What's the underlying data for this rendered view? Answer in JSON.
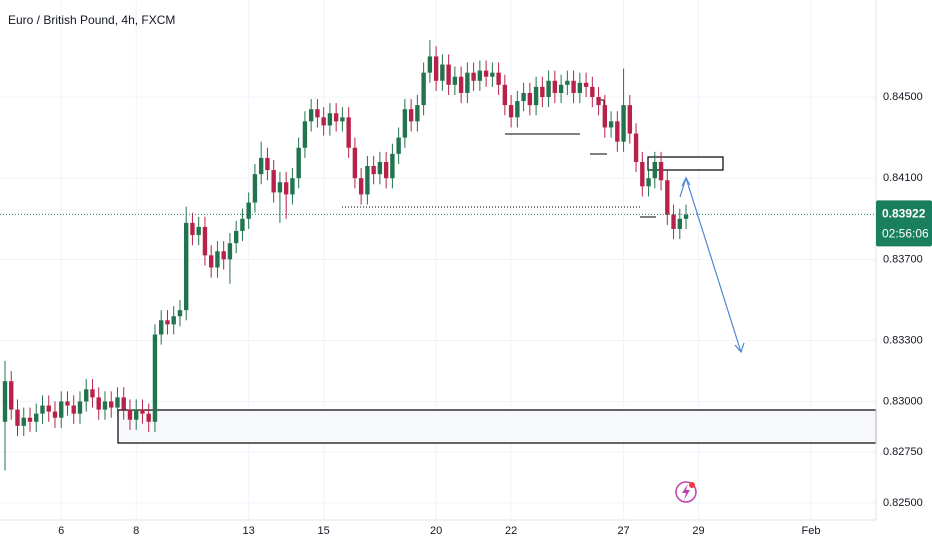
{
  "chart_data": {
    "type": "candlestick",
    "title": "Euro / British Pound, 4h, FXCM",
    "up_color": "#22744f",
    "down_color": "#b8224a",
    "open": [
      0.829,
      0.831,
      0.8296,
      0.8288,
      0.8292,
      0.829,
      0.8294,
      0.8298,
      0.8295,
      0.8292,
      0.83,
      0.8298,
      0.8294,
      0.83,
      0.8306,
      0.8302,
      0.8296,
      0.83,
      0.8297,
      0.8302,
      0.8296,
      0.8291,
      0.8296,
      0.8294,
      0.829,
      0.8333,
      0.834,
      0.8338,
      0.8342,
      0.8345,
      0.8388,
      0.8382,
      0.8386,
      0.8372,
      0.8366,
      0.8374,
      0.837,
      0.8378,
      0.8384,
      0.839,
      0.8398,
      0.8412,
      0.842,
      0.8414,
      0.8403,
      0.8408,
      0.8402,
      0.841,
      0.8425,
      0.8438,
      0.8444,
      0.844,
      0.8436,
      0.8442,
      0.8438,
      0.844,
      0.8425,
      0.841,
      0.8402,
      0.8416,
      0.8412,
      0.8418,
      0.841,
      0.8422,
      0.843,
      0.8444,
      0.8438,
      0.8446,
      0.8462,
      0.847,
      0.8458,
      0.8466,
      0.8456,
      0.846,
      0.8452,
      0.8462,
      0.8458,
      0.8463,
      0.846,
      0.8462,
      0.8456,
      0.8446,
      0.844,
      0.8448,
      0.8452,
      0.8446,
      0.8455,
      0.845,
      0.8458,
      0.8452,
      0.8456,
      0.8458,
      0.8452,
      0.8457,
      0.8455,
      0.845,
      0.8446,
      0.8435,
      0.8438,
      0.8428,
      0.8446,
      0.8432,
      0.8418,
      0.8406,
      0.841,
      0.8418,
      0.8409,
      0.8392,
      0.8385,
      0.839
    ],
    "high": [
      0.832,
      0.8315,
      0.8301,
      0.8297,
      0.8297,
      0.8299,
      0.8303,
      0.8303,
      0.83,
      0.8305,
      0.8305,
      0.8303,
      0.8305,
      0.8311,
      0.8311,
      0.8307,
      0.8305,
      0.8305,
      0.8307,
      0.8307,
      0.8301,
      0.8301,
      0.8301,
      0.8299,
      0.8338,
      0.8345,
      0.8345,
      0.8347,
      0.835,
      0.8396,
      0.8393,
      0.8391,
      0.8391,
      0.8377,
      0.8379,
      0.8379,
      0.8383,
      0.8389,
      0.8395,
      0.8403,
      0.8417,
      0.8428,
      0.8425,
      0.8419,
      0.8413,
      0.8413,
      0.8415,
      0.843,
      0.8443,
      0.8449,
      0.8449,
      0.8445,
      0.8447,
      0.8447,
      0.8445,
      0.8445,
      0.843,
      0.8415,
      0.8421,
      0.8421,
      0.8423,
      0.8423,
      0.8427,
      0.8435,
      0.8449,
      0.8449,
      0.8451,
      0.8467,
      0.8478,
      0.8475,
      0.8471,
      0.8471,
      0.8465,
      0.8465,
      0.8467,
      0.8467,
      0.8468,
      0.8468,
      0.8467,
      0.8467,
      0.8461,
      0.8451,
      0.8453,
      0.8457,
      0.8457,
      0.846,
      0.846,
      0.8463,
      0.8463,
      0.8461,
      0.8463,
      0.8463,
      0.8462,
      0.8462,
      0.846,
      0.8455,
      0.8451,
      0.8443,
      0.8443,
      0.8464,
      0.8451,
      0.8437,
      0.8423,
      0.8415,
      0.8423,
      0.8423,
      0.8414,
      0.8397,
      0.8395,
      0.8397
    ],
    "low": [
      0.8266,
      0.8291,
      0.8283,
      0.8283,
      0.8285,
      0.8285,
      0.8289,
      0.829,
      0.8287,
      0.8287,
      0.8293,
      0.8289,
      0.8289,
      0.8295,
      0.8297,
      0.8291,
      0.8291,
      0.8292,
      0.8292,
      0.8291,
      0.8286,
      0.8286,
      0.8289,
      0.8285,
      0.8285,
      0.8328,
      0.8333,
      0.8333,
      0.8337,
      0.834,
      0.8377,
      0.8377,
      0.8367,
      0.8361,
      0.8361,
      0.8365,
      0.8358,
      0.8373,
      0.8379,
      0.8385,
      0.8393,
      0.8407,
      0.8409,
      0.8398,
      0.8388,
      0.839,
      0.8397,
      0.8405,
      0.842,
      0.8433,
      0.8435,
      0.8431,
      0.8431,
      0.8433,
      0.8433,
      0.842,
      0.8405,
      0.8397,
      0.8397,
      0.8407,
      0.8407,
      0.8405,
      0.8405,
      0.8417,
      0.8425,
      0.8433,
      0.8433,
      0.8441,
      0.8457,
      0.8453,
      0.8453,
      0.8451,
      0.8451,
      0.8447,
      0.8447,
      0.8453,
      0.8453,
      0.8455,
      0.8455,
      0.8451,
      0.8441,
      0.8435,
      0.8435,
      0.8443,
      0.8441,
      0.8441,
      0.8445,
      0.8445,
      0.8447,
      0.8447,
      0.8451,
      0.8447,
      0.8447,
      0.845,
      0.8445,
      0.8441,
      0.843,
      0.843,
      0.8423,
      0.8423,
      0.8427,
      0.8413,
      0.8401,
      0.8401,
      0.8405,
      0.8404,
      0.8387,
      0.838,
      0.838,
      0.8385
    ],
    "close": [
      0.831,
      0.8296,
      0.8288,
      0.8292,
      0.829,
      0.8294,
      0.8298,
      0.8295,
      0.8292,
      0.83,
      0.8298,
      0.8294,
      0.83,
      0.8306,
      0.8302,
      0.8296,
      0.83,
      0.8297,
      0.8302,
      0.8296,
      0.8291,
      0.8296,
      0.8294,
      0.829,
      0.8333,
      0.834,
      0.8338,
      0.8342,
      0.8345,
      0.8388,
      0.8382,
      0.8386,
      0.8372,
      0.8366,
      0.8374,
      0.837,
      0.8378,
      0.8384,
      0.839,
      0.8398,
      0.8412,
      0.842,
      0.8414,
      0.8403,
      0.8408,
      0.8402,
      0.841,
      0.8425,
      0.8438,
      0.8444,
      0.844,
      0.8436,
      0.8442,
      0.8438,
      0.844,
      0.8425,
      0.841,
      0.8402,
      0.8416,
      0.8412,
      0.8418,
      0.841,
      0.8422,
      0.843,
      0.8444,
      0.8438,
      0.8446,
      0.8462,
      0.847,
      0.8458,
      0.8466,
      0.8456,
      0.846,
      0.8452,
      0.8462,
      0.8458,
      0.8463,
      0.846,
      0.8462,
      0.8456,
      0.8446,
      0.844,
      0.8448,
      0.8452,
      0.8446,
      0.8455,
      0.845,
      0.8458,
      0.8452,
      0.8456,
      0.8458,
      0.8452,
      0.8457,
      0.8455,
      0.845,
      0.8446,
      0.8435,
      0.8438,
      0.8428,
      0.8446,
      0.8432,
      0.8418,
      0.8406,
      0.841,
      0.8418,
      0.8409,
      0.8392,
      0.8385,
      0.839,
      0.8392
    ],
    "xlim": [
      -0.8,
      139.4
    ],
    "xticks": [
      {
        "value": 9,
        "label": "6"
      },
      {
        "value": 21,
        "label": "8"
      },
      {
        "value": 39,
        "label": "13"
      },
      {
        "value": 51,
        "label": "15"
      },
      {
        "value": 69,
        "label": "20"
      },
      {
        "value": 81,
        "label": "22"
      },
      {
        "value": 99,
        "label": "27"
      },
      {
        "value": 111,
        "label": "29"
      },
      {
        "value": 129,
        "label": "Feb"
      }
    ],
    "ylim": [
      0.82416,
      0.84978
    ],
    "yticks": [
      {
        "value": 0.845,
        "label": "0.84500"
      },
      {
        "value": 0.841,
        "label": "0.84100"
      },
      {
        "value": 0.837,
        "label": "0.83700"
      },
      {
        "value": 0.833,
        "label": "0.83300"
      },
      {
        "value": 0.83,
        "label": "0.83000"
      },
      {
        "value": 0.8275,
        "label": "0.82750"
      },
      {
        "value": 0.825,
        "label": "0.82500"
      }
    ],
    "grid": true,
    "last_price": 0.83922,
    "last_price_color": "#1a7f5e",
    "countdown": "02:56:06"
  }
}
